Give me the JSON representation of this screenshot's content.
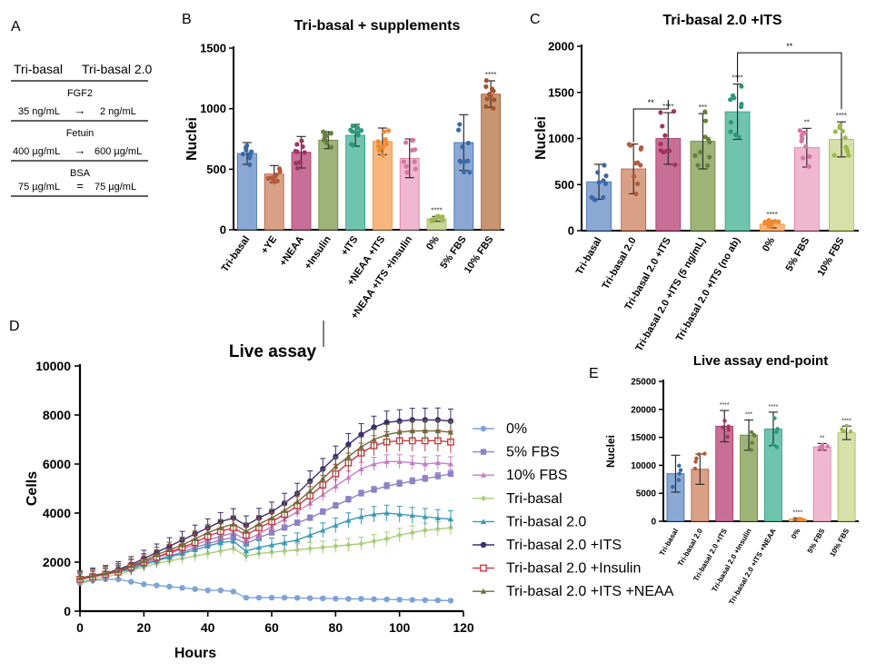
{
  "panel_a": {
    "letter": "A",
    "col_left": "Tri-basal",
    "col_right": "Tri-basal 2.0",
    "rows": [
      {
        "name": "FGF2",
        "left": "35 ng/mL",
        "op": "→",
        "right": "2 ng/mL"
      },
      {
        "name": "Fetuin",
        "left": "400 µg/mL",
        "op": "→",
        "right": "600 µg/mL"
      },
      {
        "name": "BSA",
        "left": "75 µg/mL",
        "op": "=",
        "right": "75 µg/mL"
      }
    ]
  },
  "chart_data": [
    {
      "id": "B",
      "letter": "B",
      "type": "bar",
      "title": "Tri-basal + supplements",
      "ylabel": "Nuclei",
      "ylim": [
        0,
        1500
      ],
      "yticks": [
        0,
        500,
        1000,
        1500
      ],
      "categories": [
        "Tri-basal",
        "+YE",
        "+NEAA",
        "+Insulin",
        "+ITS",
        "+NEAA +ITS",
        "+NEAA +ITS +insulin",
        "0%",
        "5% FBS",
        "10% FBS"
      ],
      "values": [
        630,
        460,
        640,
        740,
        780,
        730,
        590,
        90,
        720,
        1120
      ],
      "errors": [
        90,
        70,
        130,
        70,
        90,
        110,
        160,
        20,
        230,
        110
      ],
      "significance": [
        "",
        "",
        "",
        "",
        "",
        "",
        "",
        "****",
        "",
        "****"
      ],
      "colors": [
        "#8aa8d3",
        "#d9a086",
        "#c86f97",
        "#9fb379",
        "#6fc4ad",
        "#f6b67c",
        "#f0b8cf",
        "#c8d894",
        "#8aa8d3",
        "#c79470"
      ],
      "dot_colors": [
        "#3a69a8",
        "#b35a3b",
        "#a03561",
        "#66823a",
        "#2b9a7e",
        "#f08a30",
        "#d676a3",
        "#a0b654",
        "#3a69a8",
        "#a3542e"
      ]
    },
    {
      "id": "C",
      "letter": "C",
      "type": "bar",
      "title": "Tri-basal 2.0 +ITS",
      "ylabel": "Nuclei",
      "ylim": [
        0,
        2000
      ],
      "yticks": [
        0,
        500,
        1000,
        1500,
        2000
      ],
      "categories": [
        "Tri-basal",
        "Tri-basal 2.0",
        "Tri-basal 2.0 +ITS",
        "Tri-basal 2.0 +ITS (5 ng/mL)",
        "Tri-basal 2.0 +ITS (no ab)",
        "0%",
        "5% FBS",
        "10% FBS"
      ],
      "values": [
        530,
        670,
        1000,
        970,
        1290,
        70,
        900,
        990
      ],
      "errors": [
        190,
        270,
        280,
        300,
        300,
        40,
        210,
        190
      ],
      "significance": [
        "",
        "",
        "****",
        "***",
        "****",
        "****",
        "**",
        "****"
      ],
      "brackets": [
        {
          "from": 1,
          "to": 2,
          "label": "**"
        },
        {
          "from": 4,
          "to": 7,
          "label": "**"
        }
      ],
      "colors": [
        "#8aa8d3",
        "#d9a086",
        "#c86f97",
        "#9fb379",
        "#6fc4ad",
        "#f6b67c",
        "#f0b8cf",
        "#d7e0a8"
      ],
      "dot_colors": [
        "#3a69a8",
        "#b35a3b",
        "#a03561",
        "#66823a",
        "#2b9a7e",
        "#f08a30",
        "#d676a3",
        "#9db84d"
      ]
    },
    {
      "id": "D",
      "letter": "D",
      "type": "line",
      "title": "Live assay",
      "xlabel": "Hours",
      "ylabel": "Cells",
      "xlim": [
        0,
        120
      ],
      "ylim": [
        0,
        10000
      ],
      "xticks": [
        0,
        20,
        40,
        60,
        80,
        100,
        120
      ],
      "yticks": [
        0,
        2000,
        4000,
        6000,
        8000,
        10000
      ],
      "x": [
        0,
        4,
        8,
        12,
        16,
        20,
        24,
        28,
        32,
        36,
        40,
        44,
        48,
        52,
        56,
        60,
        64,
        68,
        72,
        76,
        80,
        84,
        88,
        92,
        96,
        100,
        104,
        108,
        112,
        116
      ],
      "series": [
        {
          "name": "0%",
          "color": "#7ea3d6",
          "marker": "circle",
          "values": [
            1150,
            1250,
            1300,
            1300,
            1200,
            1100,
            1050,
            1000,
            950,
            900,
            850,
            850,
            800,
            550,
            550,
            550,
            550,
            540,
            530,
            520,
            510,
            500,
            500,
            490,
            480,
            470,
            460,
            450,
            440,
            430
          ],
          "error": 60
        },
        {
          "name": "5% FBS",
          "color": "#8e82c4",
          "marker": "square",
          "values": [
            1300,
            1400,
            1500,
            1600,
            1750,
            1950,
            2100,
            2250,
            2400,
            2600,
            2750,
            2900,
            3000,
            2750,
            3000,
            3200,
            3400,
            3600,
            3800,
            4050,
            4300,
            4550,
            4800,
            4950,
            5100,
            5200,
            5300,
            5400,
            5500,
            5600
          ],
          "error": 150
        },
        {
          "name": "10% FBS",
          "color": "#c37ec5",
          "marker": "triangle",
          "values": [
            1350,
            1450,
            1550,
            1650,
            1800,
            2000,
            2200,
            2350,
            2550,
            2700,
            2900,
            3050,
            3200,
            2900,
            3150,
            3450,
            3750,
            4050,
            4400,
            4750,
            5100,
            5450,
            5800,
            6000,
            6100,
            6100,
            6050,
            6000,
            6050,
            6000
          ],
          "error": 300
        },
        {
          "name": "Tri-basal",
          "color": "#a9cd7a",
          "marker": "diamond",
          "values": [
            1200,
            1300,
            1400,
            1500,
            1650,
            1800,
            1950,
            2050,
            2150,
            2250,
            2350,
            2450,
            2550,
            2250,
            2350,
            2400,
            2450,
            2500,
            2550,
            2600,
            2650,
            2700,
            2750,
            2850,
            2950,
            3100,
            3200,
            3300,
            3350,
            3400
          ],
          "error": 300
        },
        {
          "name": "Tri-basal 2.0",
          "color": "#3d99b5",
          "marker": "triangle",
          "values": [
            1300,
            1400,
            1500,
            1600,
            1700,
            1900,
            2050,
            2200,
            2350,
            2500,
            2650,
            2800,
            2850,
            2450,
            2600,
            2700,
            2800,
            2900,
            3100,
            3300,
            3500,
            3700,
            3850,
            3950,
            4000,
            3950,
            3900,
            3850,
            3800,
            3750
          ],
          "error": 350
        },
        {
          "name": "Tri-basal 2.0 +ITS",
          "color": "#3b2e6e",
          "marker": "circle",
          "values": [
            1350,
            1450,
            1550,
            1700,
            1900,
            2150,
            2400,
            2650,
            2900,
            3150,
            3400,
            3650,
            3800,
            3500,
            3800,
            4050,
            4400,
            4800,
            5300,
            5800,
            6300,
            6800,
            7200,
            7500,
            7700,
            7750,
            7800,
            7800,
            7800,
            7750
          ],
          "error": 500
        },
        {
          "name": "Tri-basal 2.0 +Insulin",
          "color": "#c43b44",
          "marker": "square-open",
          "values": [
            1300,
            1400,
            1500,
            1600,
            1800,
            2000,
            2200,
            2400,
            2600,
            2800,
            3050,
            3250,
            3400,
            3100,
            3400,
            3650,
            3950,
            4300,
            4700,
            5150,
            5600,
            6050,
            6450,
            6750,
            6900,
            6950,
            6950,
            6950,
            6950,
            6900
          ],
          "error": 450
        },
        {
          "name": "Tri-basal 2.0 +ITS +NEAA",
          "color": "#6b6b3a",
          "marker": "triangle",
          "values": [
            1350,
            1450,
            1550,
            1650,
            1850,
            2050,
            2300,
            2500,
            2700,
            2950,
            3200,
            3400,
            3550,
            3250,
            3550,
            3800,
            4100,
            4450,
            4900,
            5400,
            5900,
            6300,
            6700,
            7000,
            7200,
            7300,
            7350,
            7350,
            7350,
            7300
          ],
          "error": 450
        }
      ]
    },
    {
      "id": "E",
      "letter": "E",
      "type": "bar",
      "title": "Live assay end-point",
      "ylabel": "Nuclei",
      "ylim": [
        0,
        25000
      ],
      "yticks": [
        0,
        5000,
        10000,
        15000,
        20000,
        25000
      ],
      "categories": [
        "Tri-basal",
        "Tri-basal 2.0",
        "Tri-basal 2.0 +ITS",
        "Tri-basal 2.0 +Insulin",
        "Tri-basal 2.0 +ITS +NEAA",
        "0%",
        "5% FBS",
        "10% FBS"
      ],
      "values": [
        8500,
        9300,
        17000,
        15400,
        16500,
        400,
        13300,
        15800
      ],
      "errors": [
        3300,
        2700,
        2800,
        2700,
        3000,
        200,
        600,
        1200
      ],
      "significance": [
        "",
        "",
        "****",
        "***",
        "****",
        "****",
        "**",
        "****"
      ],
      "colors": [
        "#8aa8d3",
        "#d9a086",
        "#c86f97",
        "#9fb379",
        "#6fc4ad",
        "#f6b67c",
        "#f0b8cf",
        "#d7e0a8"
      ],
      "dot_colors": [
        "#3a69a8",
        "#b35a3b",
        "#a03561",
        "#66823a",
        "#2b9a7e",
        "#f08a30",
        "#d676a3",
        "#9db84d"
      ]
    }
  ]
}
